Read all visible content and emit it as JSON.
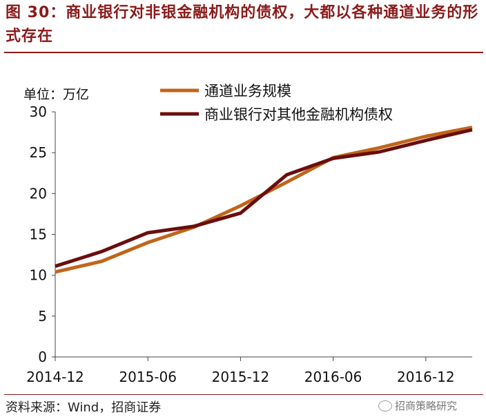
{
  "figure": {
    "title": "图 30：商业银行对非银金融机构的债权，大都以各种通道业务的形式存在",
    "source": "资料来源：Wind，招商证券",
    "watermark": "招商策略研究"
  },
  "colors": {
    "title": "#8b1a1a",
    "rule": "#8b1a1a",
    "series_channel": "#c0651a",
    "series_claims": "#6b0d0d"
  },
  "chart_data": {
    "type": "line",
    "unit_label": "单位：万亿",
    "ylim": [
      0,
      30
    ],
    "yticks": [
      0,
      5,
      10,
      15,
      20,
      25,
      30
    ],
    "xtick_labels": [
      "2014-12",
      "2015-06",
      "2015-12",
      "2016-06",
      "2016-12"
    ],
    "x": [
      "2014-12",
      "2015-03",
      "2015-06",
      "2015-09",
      "2015-12",
      "2016-03",
      "2016-06",
      "2016-09",
      "2016-12",
      "2017-03"
    ],
    "grid": false,
    "legend": "top-right",
    "series": [
      {
        "name": "通道业务规模",
        "color": "#c0651a",
        "values": [
          10.4,
          11.7,
          14.0,
          15.9,
          18.5,
          21.4,
          24.4,
          25.6,
          27.0,
          28.1
        ]
      },
      {
        "name": "商业银行对其他金融机构债权",
        "color": "#6b0d0d",
        "values": [
          11.1,
          12.9,
          15.2,
          16.0,
          17.6,
          22.3,
          24.3,
          25.1,
          26.5,
          27.8
        ]
      }
    ]
  }
}
